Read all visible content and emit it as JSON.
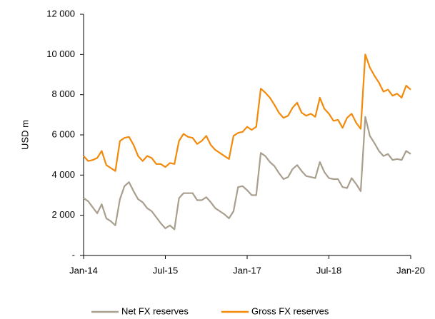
{
  "chart_data": {
    "type": "line",
    "y_label": "USD m",
    "categories": [
      "Jan-14",
      null,
      null,
      null,
      null,
      null,
      null,
      null,
      null,
      null,
      null,
      null,
      null,
      null,
      null,
      null,
      null,
      null,
      "Jul-15",
      null,
      null,
      null,
      null,
      null,
      null,
      null,
      null,
      null,
      null,
      null,
      null,
      null,
      null,
      null,
      null,
      null,
      "Jan-17",
      null,
      null,
      null,
      null,
      null,
      null,
      null,
      null,
      null,
      null,
      null,
      null,
      null,
      null,
      null,
      null,
      null,
      "Jul-18",
      null,
      null,
      null,
      null,
      null,
      null,
      null,
      null,
      null,
      null,
      null,
      null,
      null,
      null,
      null,
      null,
      null,
      "Jan-20"
    ],
    "series": [
      {
        "name": "Net FX reserves",
        "color": "#a89f8e",
        "values": [
          2850,
          2700,
          2400,
          2100,
          2550,
          1850,
          1700,
          1500,
          2800,
          3450,
          3650,
          3200,
          2800,
          2650,
          2350,
          2200,
          1900,
          1600,
          1350,
          1500,
          1300,
          2850,
          3100,
          3100,
          3100,
          2750,
          2750,
          2900,
          2650,
          2350,
          2200,
          2050,
          1850,
          2200,
          3400,
          3450,
          3250,
          3000,
          3000,
          5100,
          4950,
          4650,
          4450,
          4100,
          3800,
          3900,
          4300,
          4500,
          4200,
          3950,
          3900,
          3850,
          4650,
          4150,
          3850,
          3800,
          3800,
          3400,
          3350,
          3850,
          3550,
          3200,
          6900,
          5950,
          5600,
          5200,
          4950,
          5050,
          4750,
          4800,
          4750,
          5200,
          5050
        ]
      },
      {
        "name": "Gross FX reserves",
        "color": "#f28a0c",
        "values": [
          4950,
          4700,
          4750,
          4850,
          5200,
          4500,
          4350,
          4200,
          5700,
          5850,
          5900,
          5500,
          4950,
          4700,
          4950,
          4850,
          4550,
          4550,
          4400,
          4600,
          4550,
          5700,
          6050,
          5900,
          5850,
          5550,
          5700,
          5950,
          5500,
          5250,
          5100,
          4950,
          4800,
          5950,
          6100,
          6150,
          6400,
          6250,
          6400,
          8300,
          8100,
          7850,
          7500,
          7100,
          6850,
          6950,
          7350,
          7600,
          7100,
          6950,
          7050,
          6900,
          7850,
          7300,
          7050,
          6700,
          6750,
          6350,
          6850,
          7050,
          6600,
          6300,
          10000,
          9350,
          8950,
          8600,
          8150,
          8250,
          7950,
          8050,
          7850,
          8450,
          8250
        ]
      }
    ],
    "ylim": [
      0,
      12000
    ],
    "yticks": [
      {
        "value": 0,
        "label": "-"
      },
      {
        "value": 2000,
        "label": "2 000"
      },
      {
        "value": 4000,
        "label": "4 000"
      },
      {
        "value": 6000,
        "label": "6 000"
      },
      {
        "value": 8000,
        "label": "8 000"
      },
      {
        "value": 10000,
        "label": "10 000"
      },
      {
        "value": 12000,
        "label": "12 000"
      }
    ],
    "grid": false,
    "legend": "bottom"
  }
}
